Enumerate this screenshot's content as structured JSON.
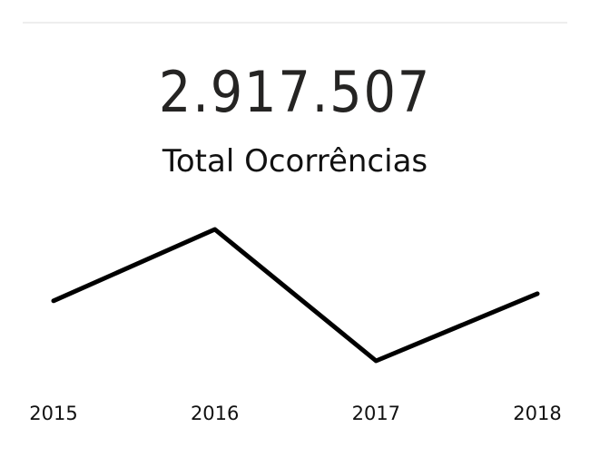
{
  "kpi": {
    "value": "2.917.507",
    "label": "Total Ocorrências"
  },
  "colors": {
    "line": "#000000",
    "divider": "#eeeeee"
  },
  "chart_data": {
    "type": "line",
    "title": "",
    "xlabel": "",
    "ylabel": "",
    "categories": [
      "2015",
      "2016",
      "2017",
      "2018"
    ],
    "series": [
      {
        "values": [
          726000,
          776000,
          684000,
          731000
        ]
      }
    ],
    "grid": false,
    "legend": "none"
  }
}
